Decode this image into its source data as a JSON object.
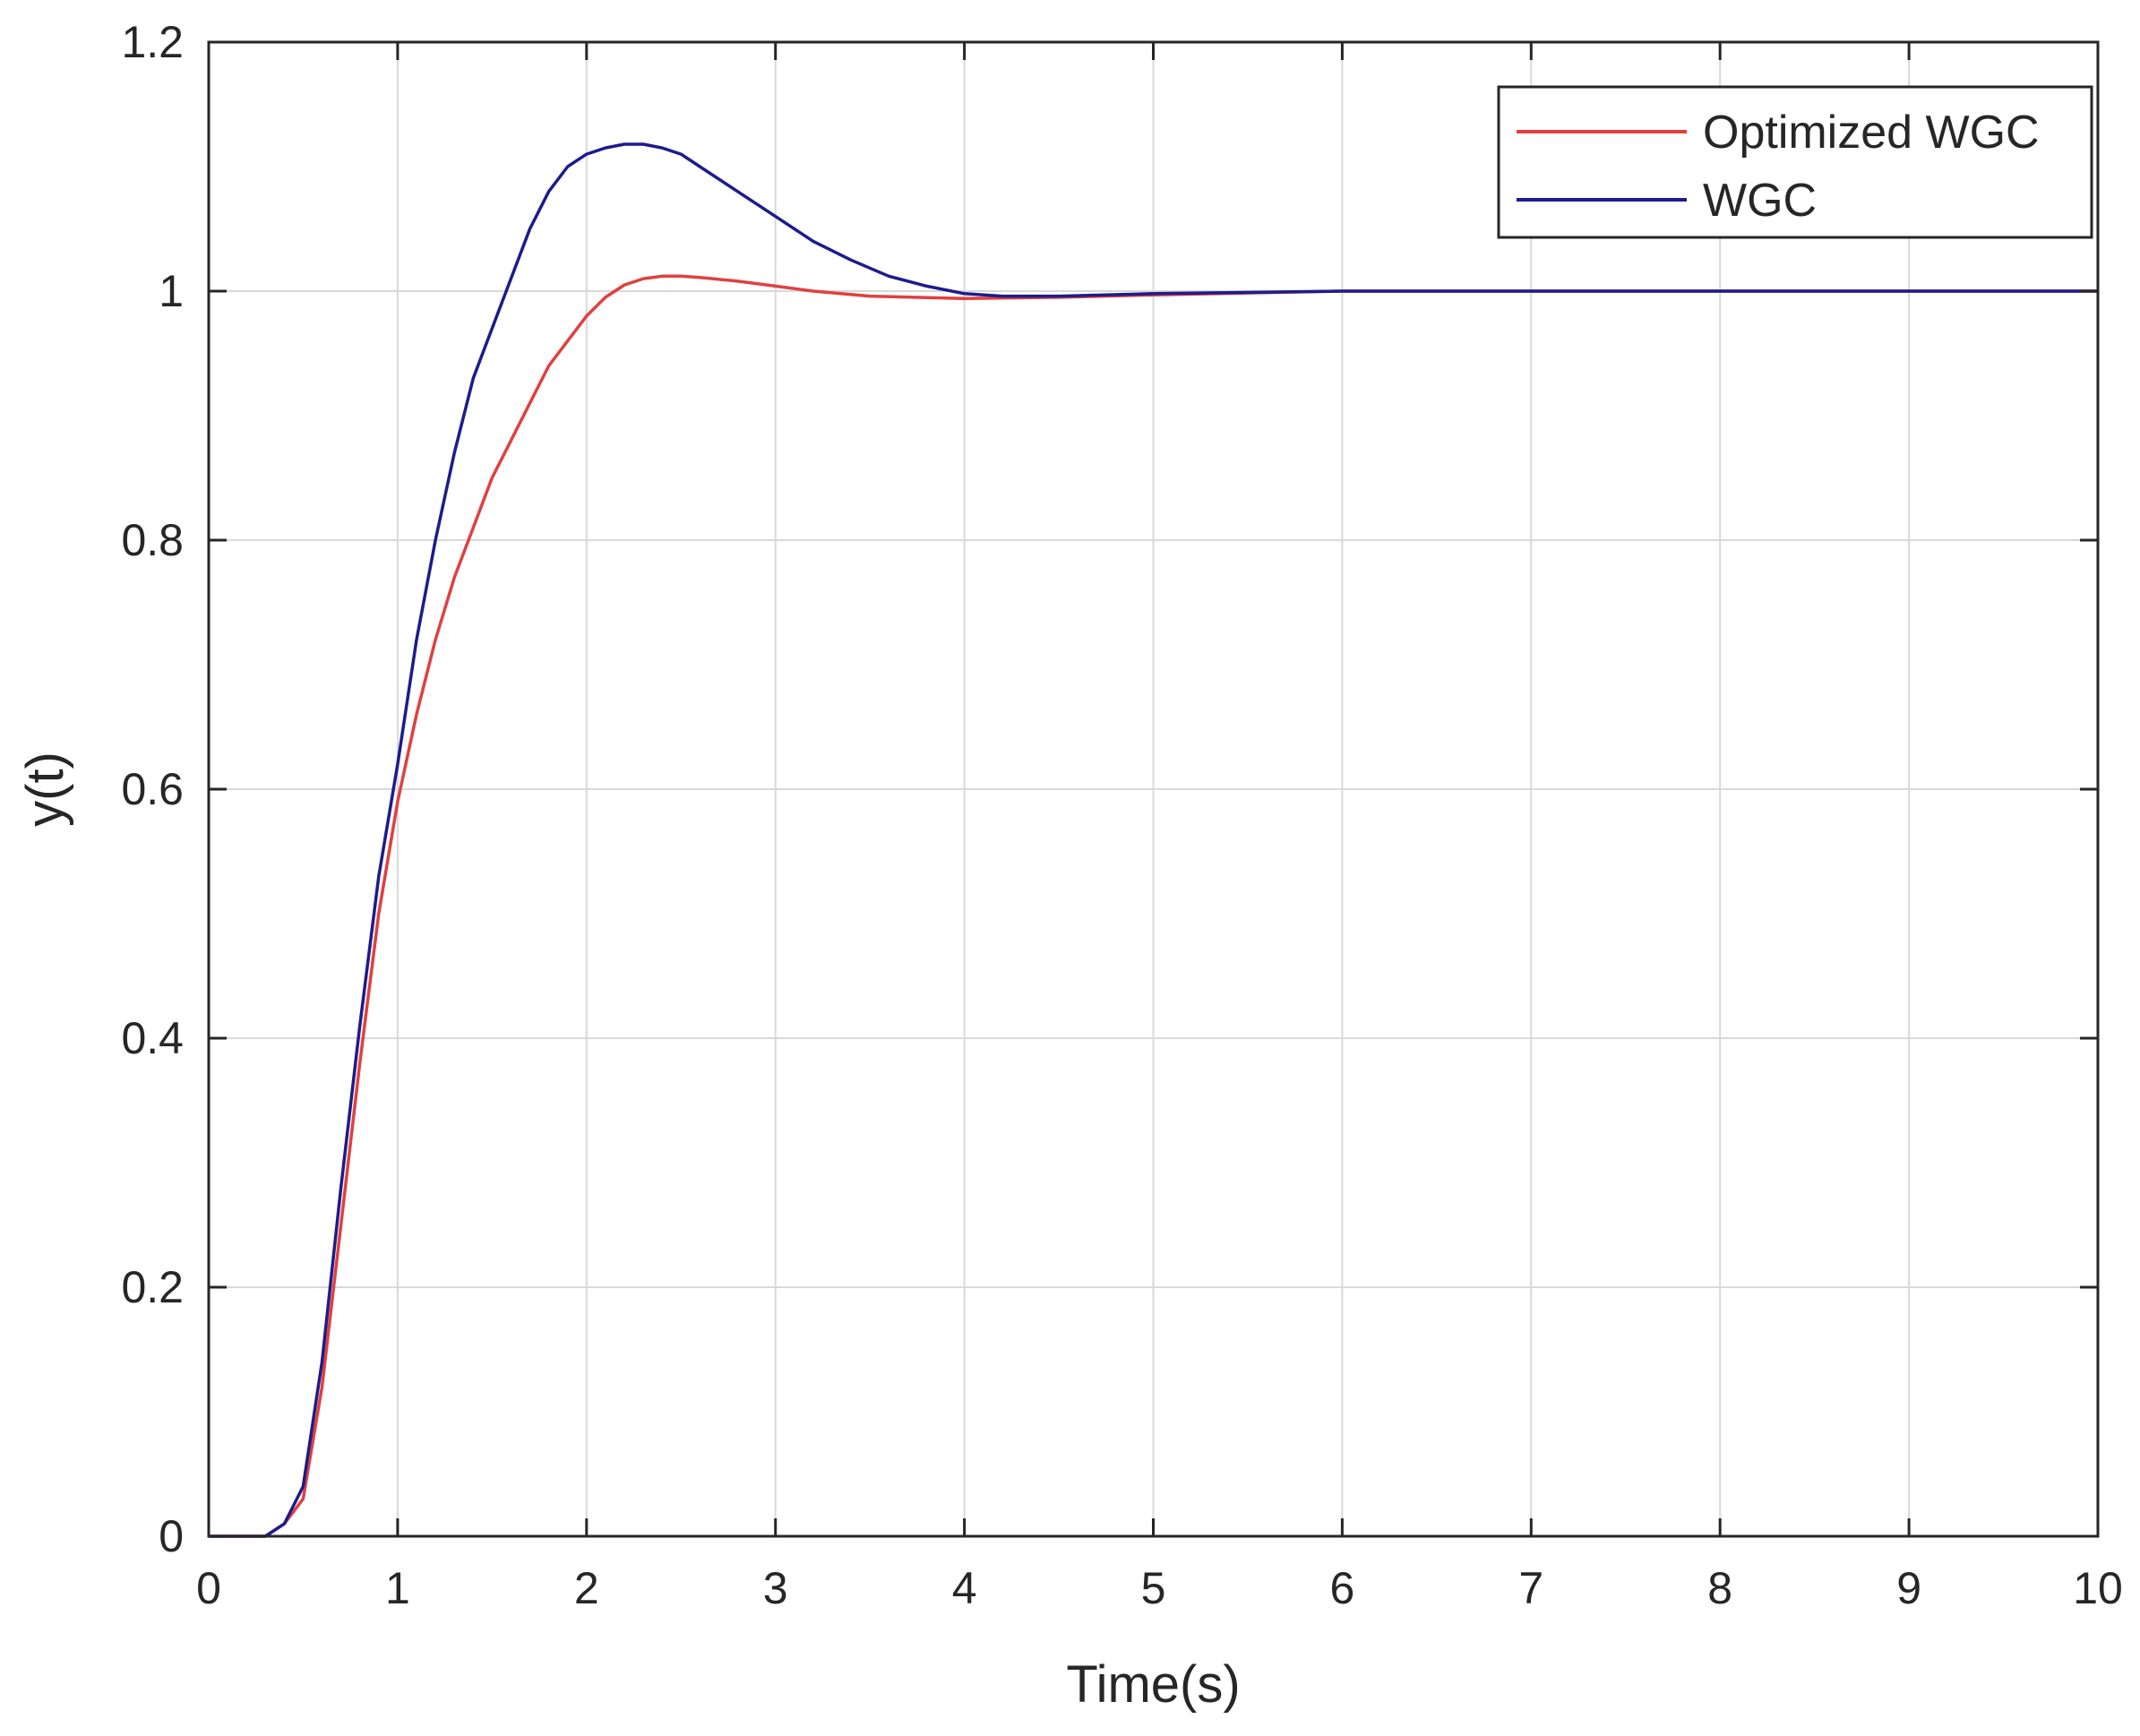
{
  "chart_data": {
    "type": "line",
    "title": "",
    "xlabel": "Time(s)",
    "ylabel": "y(t)",
    "xlim": [
      0,
      10
    ],
    "ylim": [
      0,
      1.2
    ],
    "xticks": [
      0,
      1,
      2,
      3,
      4,
      5,
      6,
      7,
      8,
      9,
      10
    ],
    "yticks": [
      0,
      0.2,
      0.4,
      0.6,
      0.8,
      1,
      1.2
    ],
    "xtick_labels": [
      "0",
      "1",
      "2",
      "3",
      "4",
      "5",
      "6",
      "7",
      "8",
      "9",
      "10"
    ],
    "ytick_labels": [
      "0",
      "0.2",
      "0.4",
      "0.6",
      "0.8",
      "1",
      "1.2"
    ],
    "grid": true,
    "legend_position": "top-right",
    "series": [
      {
        "name": "Optimized WGC",
        "color": "#e04040",
        "x": [
          0,
          0.3,
          0.4,
          0.5,
          0.6,
          0.7,
          0.8,
          0.9,
          1.0,
          1.1,
          1.2,
          1.3,
          1.4,
          1.5,
          1.6,
          1.7,
          1.8,
          1.9,
          2.0,
          2.1,
          2.2,
          2.3,
          2.4,
          2.5,
          2.6,
          2.8,
          3.0,
          3.2,
          3.5,
          4.0,
          4.5,
          5.0,
          6.0,
          7.0,
          8.0,
          9.0,
          10.0
        ],
        "y": [
          0,
          0,
          0.01,
          0.03,
          0.12,
          0.25,
          0.38,
          0.5,
          0.59,
          0.66,
          0.72,
          0.77,
          0.81,
          0.85,
          0.88,
          0.91,
          0.94,
          0.96,
          0.98,
          0.995,
          1.005,
          1.01,
          1.012,
          1.012,
          1.011,
          1.008,
          1.004,
          1.0,
          0.996,
          0.994,
          0.995,
          0.997,
          1.0,
          1.0,
          1.0,
          1.0,
          1.0
        ]
      },
      {
        "name": "WGC",
        "color": "#1c1c8c",
        "x": [
          0,
          0.3,
          0.4,
          0.5,
          0.6,
          0.7,
          0.8,
          0.9,
          1.0,
          1.1,
          1.2,
          1.3,
          1.4,
          1.5,
          1.6,
          1.7,
          1.8,
          1.9,
          2.0,
          2.1,
          2.2,
          2.3,
          2.4,
          2.5,
          2.6,
          2.8,
          3.0,
          3.2,
          3.4,
          3.6,
          3.8,
          4.0,
          4.2,
          4.5,
          5.0,
          6.0,
          7.0,
          8.0,
          9.0,
          10.0
        ],
        "y": [
          0,
          0,
          0.01,
          0.04,
          0.14,
          0.28,
          0.41,
          0.53,
          0.62,
          0.72,
          0.8,
          0.87,
          0.93,
          0.97,
          1.01,
          1.05,
          1.08,
          1.1,
          1.11,
          1.115,
          1.118,
          1.118,
          1.115,
          1.11,
          1.1,
          1.08,
          1.06,
          1.04,
          1.025,
          1.012,
          1.004,
          0.998,
          0.996,
          0.996,
          0.998,
          1.0,
          1.0,
          1.0,
          1.0,
          1.0
        ]
      }
    ]
  }
}
